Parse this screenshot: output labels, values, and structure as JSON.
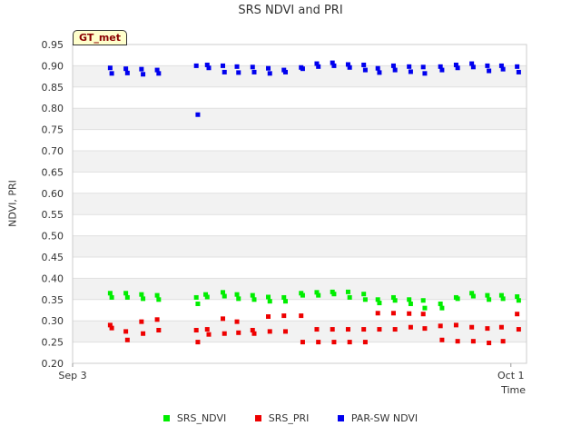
{
  "chart_data": {
    "type": "scatter",
    "title": "SRS NDVI and PRI",
    "ylabel": "NDVI, PRI",
    "xlabel": "Time",
    "ylim": [
      0.2,
      0.95
    ],
    "yticks": [
      "0.20",
      "0.25",
      "0.30",
      "0.35",
      "0.40",
      "0.45",
      "0.50",
      "0.55",
      "0.60",
      "0.65",
      "0.70",
      "0.75",
      "0.80",
      "0.85",
      "0.90",
      "0.95"
    ],
    "x_range_days": [
      3,
      32
    ],
    "xticks": [
      {
        "label": "Sep 3",
        "day": 3
      },
      {
        "label": "Oct 1",
        "day": 31
      }
    ],
    "badge": "GT_met",
    "series": [
      {
        "name": "SRS_NDVI",
        "color": "#00ee00",
        "x": [
          5.4,
          5.5,
          6.4,
          6.5,
          7.4,
          7.5,
          8.4,
          8.5,
          10.9,
          11.0,
          11.5,
          11.6,
          12.6,
          12.7,
          13.5,
          13.6,
          14.5,
          14.6,
          15.5,
          15.6,
          16.5,
          16.6,
          17.6,
          17.7,
          18.6,
          18.7,
          19.6,
          19.7,
          20.6,
          20.7,
          21.6,
          21.7,
          22.5,
          22.6,
          23.5,
          23.6,
          24.5,
          24.6,
          25.4,
          25.5,
          26.5,
          26.6,
          27.5,
          27.6,
          28.5,
          28.6,
          29.5,
          29.6,
          30.4,
          30.5,
          31.4,
          31.5
        ],
        "y": [
          0.365,
          0.355,
          0.365,
          0.355,
          0.362,
          0.352,
          0.36,
          0.35,
          0.355,
          0.34,
          0.362,
          0.356,
          0.367,
          0.358,
          0.362,
          0.352,
          0.36,
          0.35,
          0.356,
          0.346,
          0.355,
          0.346,
          0.365,
          0.36,
          0.367,
          0.36,
          0.368,
          0.363,
          0.368,
          0.355,
          0.363,
          0.35,
          0.35,
          0.342,
          0.355,
          0.348,
          0.35,
          0.34,
          0.348,
          0.33,
          0.34,
          0.33,
          0.355,
          0.352,
          0.365,
          0.358,
          0.36,
          0.35,
          0.36,
          0.352,
          0.357,
          0.348
        ]
      },
      {
        "name": "SRS_PRI",
        "color": "#ee0000",
        "x": [
          5.4,
          5.5,
          6.4,
          6.5,
          7.4,
          7.5,
          8.4,
          8.5,
          10.9,
          11.0,
          11.6,
          11.7,
          12.6,
          12.7,
          13.5,
          13.6,
          14.5,
          14.6,
          15.5,
          15.6,
          16.5,
          16.6,
          17.6,
          17.7,
          18.6,
          18.7,
          19.6,
          19.7,
          20.6,
          20.7,
          21.6,
          21.7,
          22.5,
          22.6,
          23.5,
          23.6,
          24.5,
          24.6,
          25.4,
          25.5,
          26.5,
          26.6,
          27.5,
          27.6,
          28.5,
          28.6,
          29.5,
          29.6,
          30.4,
          30.5,
          31.4,
          31.5
        ],
        "y": [
          0.29,
          0.283,
          0.275,
          0.255,
          0.298,
          0.27,
          0.303,
          0.278,
          0.278,
          0.25,
          0.28,
          0.268,
          0.305,
          0.27,
          0.298,
          0.272,
          0.278,
          0.27,
          0.31,
          0.275,
          0.312,
          0.275,
          0.312,
          0.25,
          0.28,
          0.25,
          0.28,
          0.25,
          0.28,
          0.25,
          0.28,
          0.25,
          0.318,
          0.28,
          0.318,
          0.28,
          0.317,
          0.285,
          0.316,
          0.282,
          0.288,
          0.255,
          0.29,
          0.252,
          0.285,
          0.252,
          0.282,
          0.248,
          0.285,
          0.252,
          0.316,
          0.28
        ]
      },
      {
        "name": "PAR-SW NDVI",
        "color": "#0000ee",
        "x": [
          5.4,
          5.5,
          6.4,
          6.5,
          7.4,
          7.5,
          8.4,
          8.5,
          10.9,
          11.0,
          11.6,
          11.7,
          12.6,
          12.7,
          13.5,
          13.6,
          14.5,
          14.6,
          15.5,
          15.6,
          16.5,
          16.6,
          17.6,
          17.7,
          18.6,
          18.7,
          19.6,
          19.7,
          20.6,
          20.7,
          21.6,
          21.7,
          22.5,
          22.6,
          23.5,
          23.6,
          24.5,
          24.6,
          25.4,
          25.5,
          26.5,
          26.6,
          27.5,
          27.6,
          28.5,
          28.6,
          29.5,
          29.6,
          30.4,
          30.5,
          31.4,
          31.5
        ],
        "y": [
          0.895,
          0.882,
          0.893,
          0.883,
          0.892,
          0.88,
          0.89,
          0.882,
          0.9,
          0.785,
          0.902,
          0.895,
          0.9,
          0.885,
          0.898,
          0.884,
          0.897,
          0.885,
          0.894,
          0.882,
          0.89,
          0.885,
          0.896,
          0.893,
          0.905,
          0.898,
          0.907,
          0.9,
          0.903,
          0.896,
          0.902,
          0.89,
          0.894,
          0.884,
          0.9,
          0.89,
          0.898,
          0.886,
          0.897,
          0.882,
          0.898,
          0.89,
          0.902,
          0.895,
          0.905,
          0.897,
          0.9,
          0.888,
          0.9,
          0.892,
          0.898,
          0.885
        ]
      }
    ]
  }
}
